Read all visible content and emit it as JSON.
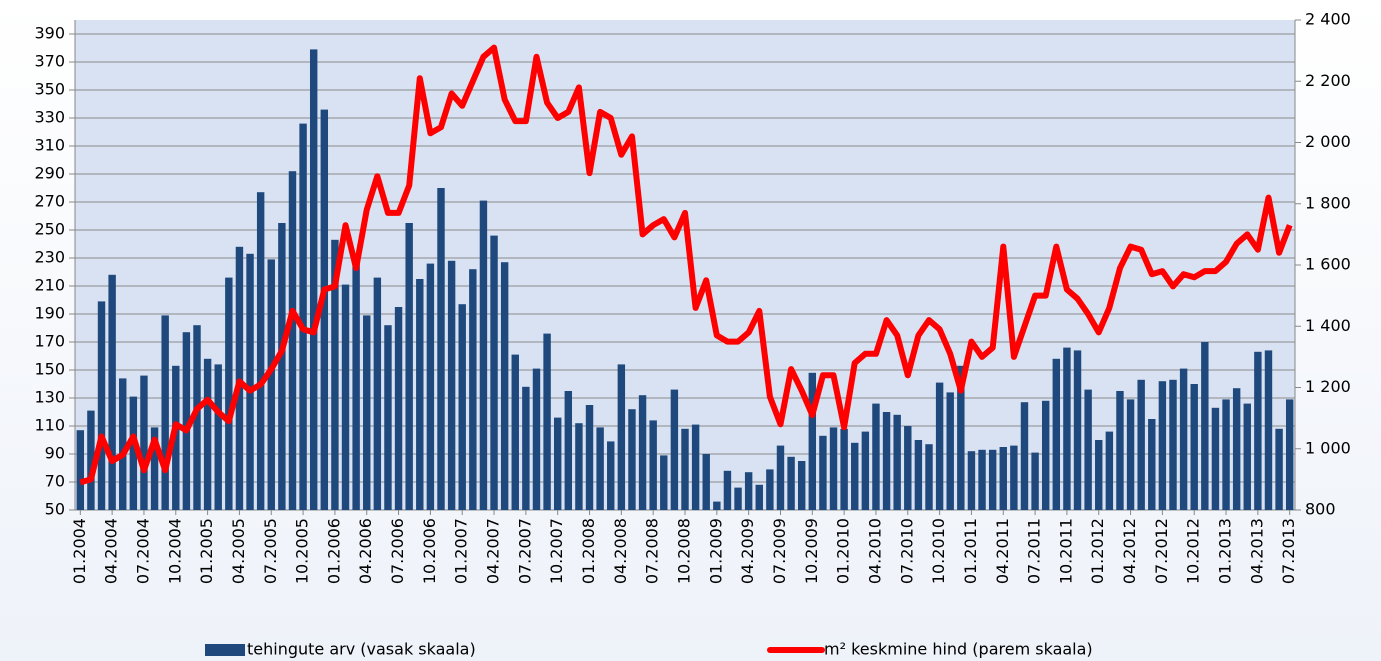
{
  "chart_data": {
    "type": "bar-line",
    "categories": [
      "01.2004",
      null,
      null,
      "04.2004",
      null,
      null,
      "07.2004",
      null,
      null,
      "10.2004",
      null,
      null,
      "01.2005",
      null,
      null,
      "04.2005",
      null,
      null,
      "07.2005",
      null,
      null,
      "10.2005",
      null,
      null,
      "01.2006",
      null,
      null,
      "04.2006",
      null,
      null,
      "07.2006",
      null,
      null,
      "10.2006",
      null,
      null,
      "01.2007",
      null,
      null,
      "04.2007",
      null,
      null,
      "07.2007",
      null,
      null,
      "10.2007",
      null,
      null,
      "01.2008",
      null,
      null,
      "04.2008",
      null,
      null,
      "07.2008",
      null,
      null,
      "10.2008",
      null,
      null,
      "01.2009",
      null,
      null,
      "04.2009",
      null,
      null,
      "07.2009",
      null,
      null,
      "10.2009",
      null,
      null,
      "01.2010",
      null,
      null,
      "04.2010",
      null,
      null,
      "07.2010",
      null,
      null,
      "10.2010",
      null,
      null,
      "01.2011",
      null,
      null,
      "04.2011",
      null,
      null,
      "07.2011",
      null,
      null,
      "10.2011",
      null,
      null,
      "01.2012",
      null,
      null,
      "04.2012",
      null,
      null,
      "07.2012",
      null,
      null,
      "10.2012",
      null,
      null,
      "01.2013",
      null,
      null,
      "04.2013",
      null,
      null,
      "07.2013"
    ],
    "series": [
      {
        "name": "tehingute arv (vasak skaala)",
        "type": "bar",
        "color": "#1f497d",
        "values": [
          107,
          121,
          199,
          218,
          144,
          131,
          146,
          109,
          189,
          153,
          177,
          182,
          158,
          154,
          216,
          238,
          233,
          277,
          229,
          255,
          292,
          326,
          379,
          336,
          243,
          211,
          227,
          189,
          216,
          182,
          195,
          255,
          215,
          226,
          280,
          228,
          197,
          222,
          271,
          246,
          227,
          161,
          138,
          151,
          176,
          116,
          135,
          112,
          125,
          109,
          99,
          154,
          122,
          132,
          114,
          89,
          136,
          108,
          111,
          90,
          56,
          78,
          66,
          77,
          68,
          79,
          96,
          88,
          85,
          148,
          103,
          109,
          108,
          98,
          106,
          126,
          120,
          118,
          110,
          100,
          97,
          141,
          134,
          153,
          92,
          93,
          93,
          95,
          96,
          127,
          91,
          128,
          158,
          166,
          164,
          136,
          100,
          106,
          135,
          129,
          143,
          115,
          142,
          143,
          151,
          140,
          170,
          123,
          129,
          137,
          126,
          163,
          164,
          108,
          129
        ]
      },
      {
        "name": "m² keskmine hind (parem skaala)",
        "type": "line",
        "axis": "y2",
        "color": "#ff0000",
        "values": [
          890,
          900,
          1040,
          960,
          980,
          1040,
          930,
          1030,
          930,
          1080,
          1060,
          1130,
          1160,
          1120,
          1090,
          1220,
          1190,
          1210,
          1260,
          1320,
          1450,
          1390,
          1380,
          1520,
          1530,
          1730,
          1590,
          1780,
          1890,
          1770,
          1770,
          1860,
          2210,
          2030,
          2050,
          2160,
          2120,
          2200,
          2280,
          2310,
          2140,
          2070,
          2070,
          2280,
          2130,
          2080,
          2100,
          2180,
          1900,
          2100,
          2080,
          1960,
          2020,
          1700,
          1730,
          1750,
          1690,
          1770,
          1460,
          1550,
          1370,
          1350,
          1350,
          1380,
          1450,
          1170,
          1080,
          1260,
          1190,
          1110,
          1240,
          1240,
          1070,
          1280,
          1310,
          1310,
          1420,
          1370,
          1240,
          1370,
          1420,
          1390,
          1310,
          1190,
          1350,
          1300,
          1330,
          1660,
          1300,
          1400,
          1500,
          1500,
          1660,
          1520,
          1490,
          1440,
          1380,
          1460,
          1590,
          1660,
          1650,
          1570,
          1580,
          1530,
          1570,
          1560,
          1580,
          1580,
          1610,
          1670,
          1700,
          1650,
          1820,
          1640,
          1730
        ]
      }
    ],
    "ylim": [
      50,
      400
    ],
    "yticks": [
      50,
      70,
      90,
      110,
      130,
      150,
      170,
      190,
      210,
      230,
      250,
      270,
      290,
      310,
      330,
      350,
      370,
      390
    ],
    "y2lim": [
      800,
      2400
    ],
    "y2ticks": [
      800,
      {
        "value": 1000,
        "label": "1 000"
      },
      {
        "value": 1200,
        "label": "1 200"
      },
      {
        "value": 1400,
        "label": "1 400"
      },
      {
        "value": 1600,
        "label": "1 600"
      },
      {
        "value": 1800,
        "label": "1 800"
      },
      {
        "value": 2000,
        "label": "2 000"
      },
      {
        "value": 2200,
        "label": "2 200"
      },
      {
        "value": 2400,
        "label": "2 400"
      }
    ],
    "grid": true,
    "legend": "bottom"
  }
}
